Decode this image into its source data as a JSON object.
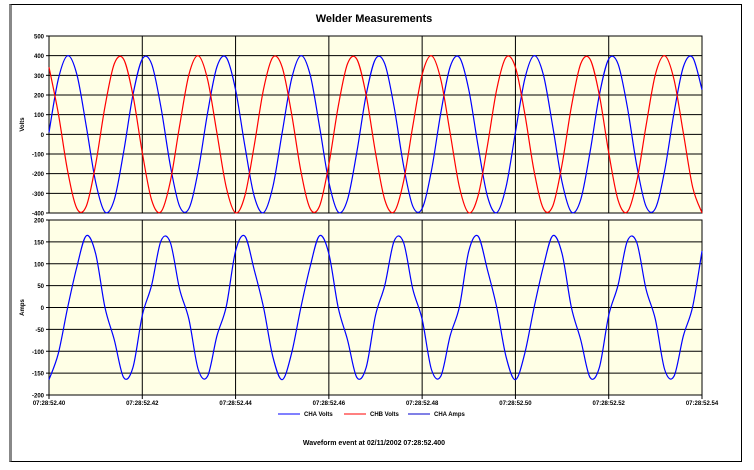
{
  "chart_data": [
    {
      "type": "line",
      "title": "Welder Measurements",
      "ylabel": "Volts",
      "ylim": [
        -400,
        500
      ],
      "yticks": [
        500,
        400,
        300,
        200,
        100,
        0,
        -100,
        -200,
        -300,
        -400
      ],
      "grid": true,
      "background": "#ffffe6",
      "series": [
        {
          "name": "CHA Volts",
          "color": "#0000ff",
          "values": [
            10,
            281,
            400,
            302,
            40,
            -243,
            -395,
            -332,
            -90,
            201,
            383,
            358,
            138,
            -157,
            -366,
            -377,
            -184,
            109,
            343,
            391,
            227,
            -60,
            -315,
            -398,
            -266,
            10,
            281,
            400,
            302,
            40,
            -243,
            -395,
            -332,
            -90,
            201,
            383,
            358,
            138,
            -157,
            -366,
            -377,
            -184,
            109,
            343,
            391,
            227,
            -60,
            -315,
            -398,
            -266,
            10,
            281,
            400,
            302,
            40,
            -243,
            -395,
            -332,
            -90,
            201,
            383,
            358,
            138,
            -157,
            -366,
            -377,
            -184,
            109,
            343,
            391,
            227
          ]
        },
        {
          "name": "CHB Volts",
          "color": "#ff0000",
          "values": [
            341,
            106,
            -187,
            -378,
            -365,
            -153,
            141,
            359,
            382,
            199,
            -93,
            -334,
            -394,
            -241,
            43,
            304,
            400,
            279,
            7,
            -269,
            -399,
            -312,
            -57,
            230,
            392,
            341,
            106,
            -187,
            -378,
            -365,
            -153,
            141,
            359,
            382,
            199,
            -93,
            -334,
            -394,
            -241,
            43,
            304,
            400,
            279,
            7,
            -269,
            -399,
            -312,
            -57,
            230,
            392,
            341,
            106,
            -187,
            -378,
            -365,
            -153,
            141,
            359,
            382,
            199,
            -93,
            -334,
            -394,
            -241,
            43,
            304,
            400,
            279,
            7,
            -269,
            -399
          ]
        }
      ]
    },
    {
      "type": "line",
      "ylabel": "Amps",
      "ylim": [
        -200,
        200
      ],
      "yticks": [
        200,
        150,
        100,
        50,
        0,
        -50,
        -100,
        -150,
        -200
      ],
      "grid": true,
      "background": "#ffffe6",
      "xlabel_ticks": [
        "07:28:52.40",
        "07:28:52.42",
        "07:28:52.44",
        "07:28:52.46",
        "07:28:52.48",
        "07:28:52.50",
        "07:28:52.52",
        "07:28:52.54"
      ],
      "xlim_seconds": [
        52.4,
        52.54
      ],
      "series": [
        {
          "name": "CHA Amps",
          "color": "#0000ff",
          "values": [
            -165,
            -105,
            0,
            94,
            164,
            123,
            0,
            -74,
            -160,
            -137,
            -18,
            51,
            152,
            149,
            42,
            -27,
            -142,
            -157,
            -65,
            2,
            129,
            163,
            86,
            0,
            -113,
            -165,
            -105,
            0,
            94,
            164,
            123,
            0,
            -74,
            -160,
            -137,
            -18,
            51,
            152,
            149,
            42,
            -27,
            -142,
            -157,
            -65,
            2,
            129,
            163,
            86,
            0,
            -113,
            -165,
            -105,
            0,
            94,
            164,
            123,
            0,
            -74,
            -160,
            -137,
            -18,
            51,
            152,
            149,
            42,
            -27,
            -142,
            -157,
            -65,
            2,
            129
          ]
        }
      ]
    }
  ],
  "x_seconds": [
    52.4,
    52.402,
    52.404,
    52.406,
    52.408,
    52.41,
    52.412,
    52.414,
    52.416,
    52.418,
    52.42,
    52.422,
    52.424,
    52.426,
    52.428,
    52.43,
    52.432,
    52.434,
    52.436,
    52.438,
    52.44,
    52.442,
    52.444,
    52.446,
    52.448,
    52.45,
    52.452,
    52.454,
    52.456,
    52.458,
    52.46,
    52.462,
    52.464,
    52.466,
    52.468,
    52.47,
    52.472,
    52.474,
    52.476,
    52.478,
    52.48,
    52.482,
    52.484,
    52.486,
    52.488,
    52.49,
    52.492,
    52.494,
    52.496,
    52.498,
    52.5,
    52.502,
    52.504,
    52.506,
    52.508,
    52.51,
    52.512,
    52.514,
    52.516,
    52.518,
    52.52,
    52.522,
    52.524,
    52.526,
    52.528,
    52.53,
    52.532,
    52.534,
    52.536,
    52.538,
    52.54
  ],
  "legend": [
    "CHA Volts",
    "CHB Volts",
    "CHA Amps"
  ],
  "footer": "Waveform event at 02/11/2002 07:28:52.400"
}
